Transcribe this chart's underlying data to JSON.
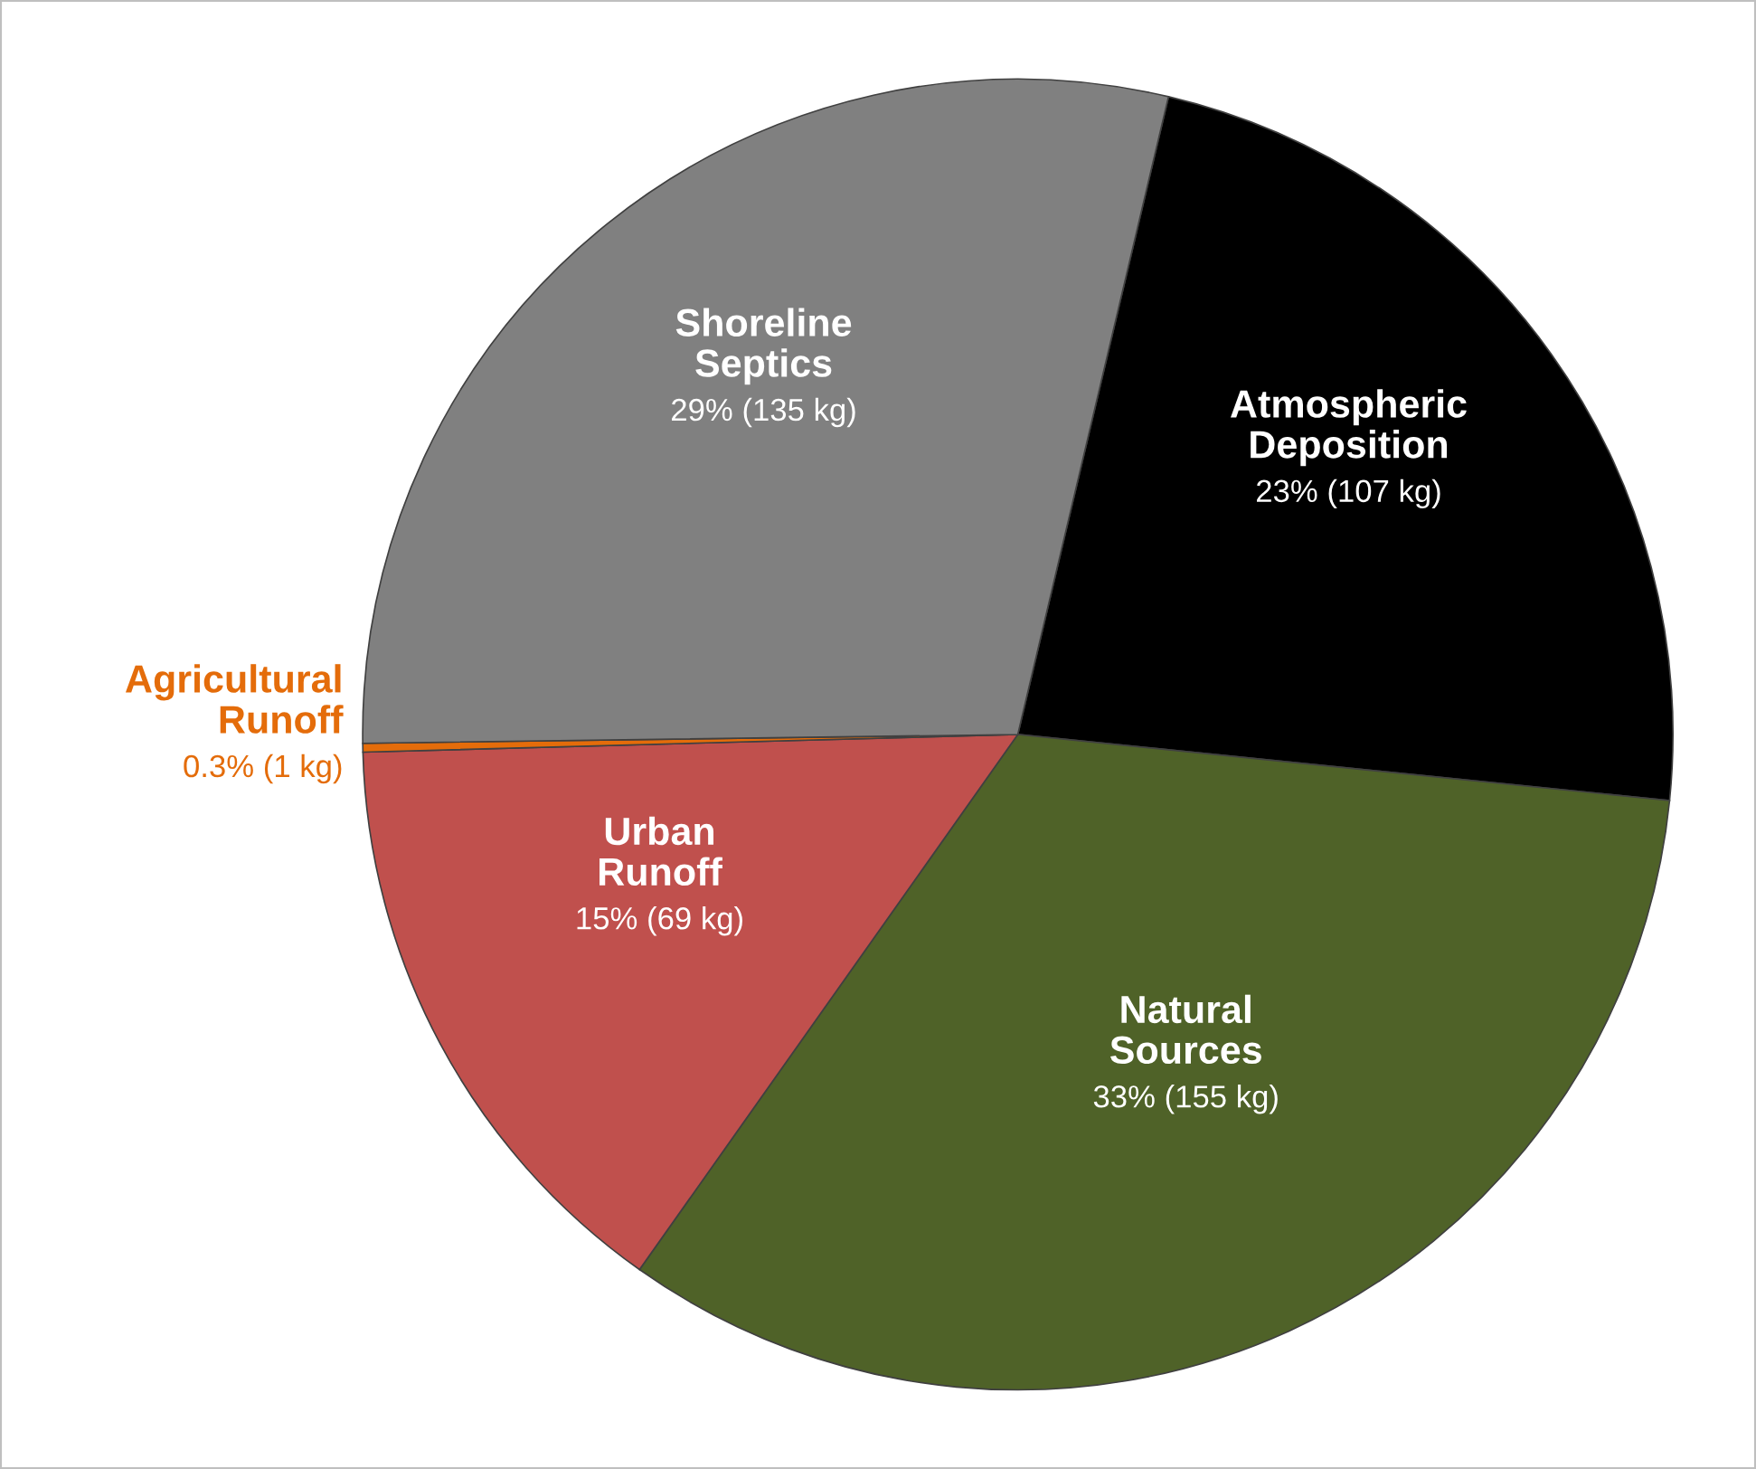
{
  "chart_data": {
    "type": "pie",
    "categories": [
      "Atmospheric\nDeposition",
      "Natural\nSources",
      "Urban\nRunoff",
      "Agricultural\nRunoff",
      "Shoreline\nSeptics"
    ],
    "values": [
      107,
      155,
      69,
      1,
      135
    ],
    "value_labels": [
      "23% (107 kg)",
      "33% (155 kg)",
      "15% (69 kg)",
      "0.3% (1 kg)",
      "29% (135 kg)"
    ],
    "colors": [
      "#000000",
      "#4f6228",
      "#c0504d",
      "#e46c0a",
      "#808080"
    ],
    "legend": false
  }
}
